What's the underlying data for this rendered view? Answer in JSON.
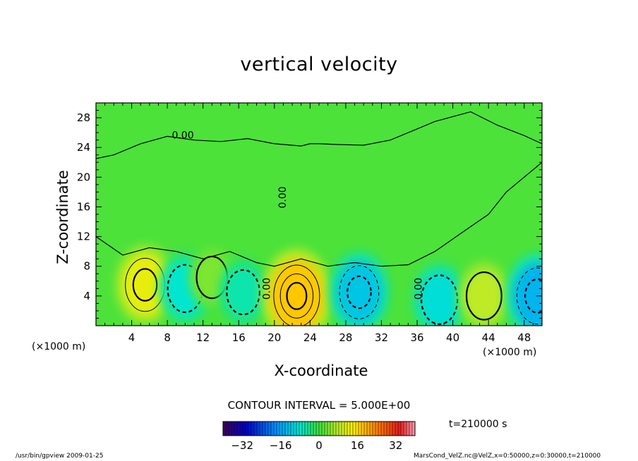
{
  "chart_data": {
    "type": "heatmap",
    "title": "vertical velocity",
    "xlabel": "X-coordinate",
    "ylabel": "Z-coordinate",
    "x_unit_label": "(×1000 m)",
    "xlim": [
      0,
      50
    ],
    "ylim": [
      0,
      30
    ],
    "x_ticks": [
      4,
      8,
      12,
      16,
      20,
      24,
      28,
      32,
      36,
      40,
      44,
      48
    ],
    "y_ticks": [
      4,
      8,
      12,
      16,
      20,
      24,
      28
    ],
    "contour_interval_text": "CONTOUR INTERVAL = 5.000E+00",
    "contour_zero_label": "0.00",
    "colorbar": {
      "ticks": [
        "−32",
        "−16",
        "0",
        "16",
        "32"
      ],
      "range": [
        -40,
        40
      ]
    },
    "time_label": "t=210000 s",
    "features": [
      {
        "type": "updraft",
        "x": 5.5,
        "z": 5.5,
        "max_w": 12
      },
      {
        "type": "downdraft",
        "x": 10,
        "z": 5.0,
        "min_w": -8
      },
      {
        "type": "updraft",
        "x": 13,
        "z": 6.5,
        "max_w": 4
      },
      {
        "type": "downdraft",
        "x": 16.5,
        "z": 4.5,
        "min_w": -6
      },
      {
        "type": "updraft",
        "x": 22.5,
        "z": 4.0,
        "max_w": 18
      },
      {
        "type": "downdraft",
        "x": 29.5,
        "z": 4.5,
        "min_w": -12
      },
      {
        "type": "downdraft",
        "x": 38.5,
        "z": 3.5,
        "min_w": -9
      },
      {
        "type": "updraft",
        "x": 43.5,
        "z": 4.0,
        "max_w": 8
      },
      {
        "type": "downdraft",
        "x": 49.5,
        "z": 4.0,
        "min_w": -14
      }
    ]
  },
  "footer": {
    "left": "/usr/bin/gpview  2009-01-25",
    "right": "MarsCond_VelZ.nc@VelZ,x=0:50000,z=0:30000,t=210000"
  }
}
